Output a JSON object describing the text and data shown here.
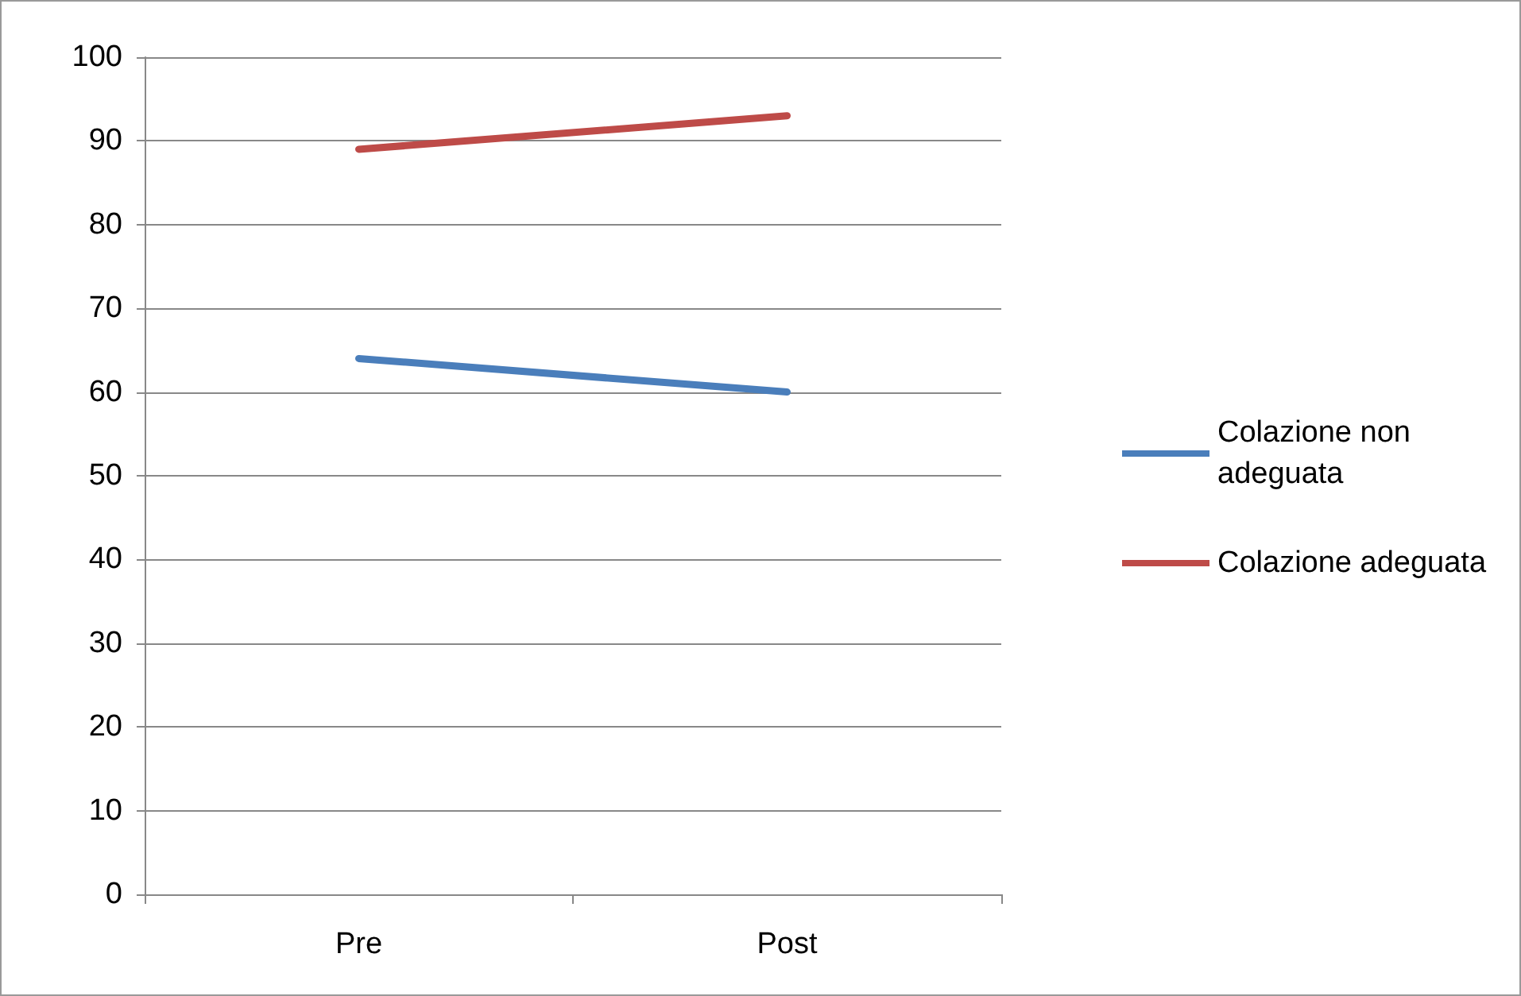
{
  "chart_data": {
    "type": "line",
    "categories": [
      "Pre",
      "Post"
    ],
    "series": [
      {
        "name": "Colazione non adeguata",
        "color": "#4a7ebb",
        "values": [
          64,
          60
        ]
      },
      {
        "name": "Colazione adeguata",
        "color": "#be4b48",
        "values": [
          89,
          93
        ]
      }
    ],
    "ylim": [
      0,
      100
    ],
    "yticks": [
      0,
      10,
      20,
      30,
      40,
      50,
      60,
      70,
      80,
      90,
      100
    ],
    "grid": "y",
    "legend": "right",
    "marker": "none",
    "line_style": "solid"
  }
}
